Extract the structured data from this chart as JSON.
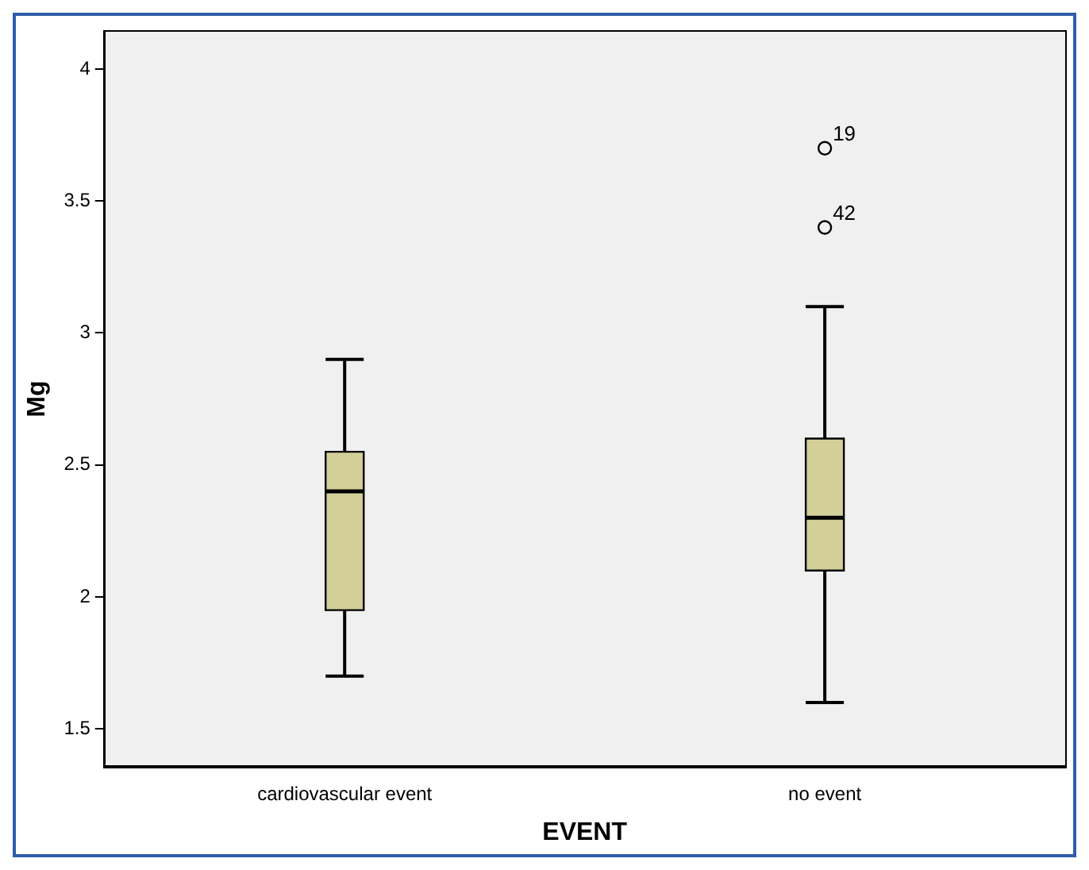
{
  "chart_data": {
    "type": "box",
    "xlabel": "EVENT",
    "ylabel": "Mg",
    "categories": [
      "cardiovascular event",
      "no event"
    ],
    "color": "#d3cf99",
    "boxes": [
      {
        "low": 1.7,
        "q1": 1.95,
        "median": 2.4,
        "q3": 2.55,
        "high": 2.9
      },
      {
        "low": 1.6,
        "q1": 2.1,
        "median": 2.3,
        "q3": 2.6,
        "high": 3.1,
        "outliers": [
          3.7,
          3.4
        ]
      }
    ],
    "ylim": [
      1.36,
      4.14
    ],
    "yticks": [
      1.5,
      2,
      2.5,
      3,
      3.5,
      4
    ],
    "grid": false,
    "legend": false,
    "annotations": [
      "19",
      "42"
    ]
  }
}
